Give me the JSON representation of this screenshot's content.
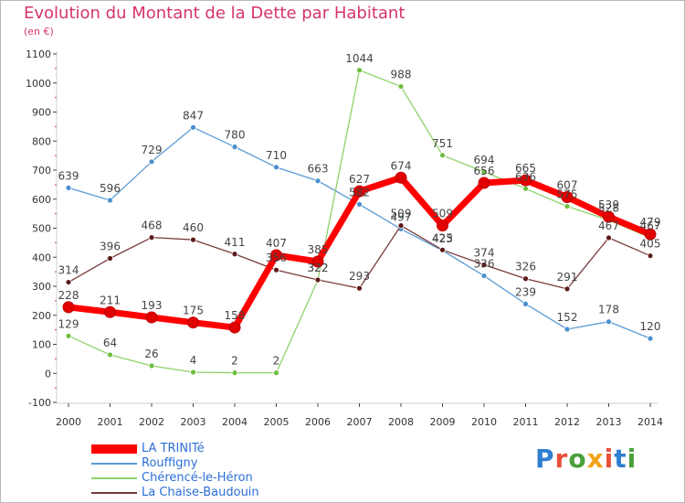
{
  "header": {
    "title": "Evolution du Montant de la Dette par Habitant",
    "unit": "(en €)"
  },
  "brand": {
    "text": "Proxiti",
    "colors": [
      "#2f7fd0",
      "#e8503a",
      "#4aa03a",
      "#f2a318",
      "#e8503a",
      "#2f7fd0",
      "#4aa03a"
    ]
  },
  "chart_data": {
    "type": "line",
    "x": [
      "2000",
      "2001",
      "2002",
      "2003",
      "2004",
      "2005",
      "2006",
      "2007",
      "2008",
      "2009",
      "2010",
      "2011",
      "2012",
      "2013",
      "2014"
    ],
    "ylim": [
      -100,
      1100
    ],
    "yticks": [
      "-100",
      "0",
      "100",
      "200",
      "300",
      "400",
      "500",
      "600",
      "700",
      "800",
      "900",
      "1000",
      "1100"
    ],
    "grid": false,
    "legend_position": "bottom-left",
    "series": [
      {
        "name": "Rouffigny",
        "color": "#5b9bd5",
        "marker": "#4a8fcf",
        "values": [
          639,
          596,
          729,
          847,
          780,
          710,
          663,
          582,
          497,
          423,
          336,
          239,
          152,
          178,
          120
        ],
        "labels": [
          "639",
          "596",
          "729",
          "847",
          "780",
          "710",
          "663",
          "582",
          "497",
          "423",
          "336",
          "239",
          "152",
          "178",
          "120"
        ]
      },
      {
        "name": "Chérencé-le-Héron",
        "color": "#8fd16a",
        "marker": "#6dbe3f",
        "values": [
          129,
          64,
          26,
          4,
          2,
          2,
          322,
          1044,
          988,
          751,
          694,
          636,
          575,
          528,
          467
        ],
        "labels": [
          "129",
          "64",
          "26",
          "4",
          "2",
          "2",
          "322",
          "1044",
          "988",
          "751",
          "694",
          "636",
          "575",
          "528",
          "467"
        ]
      },
      {
        "name": "La Chaise-Baudouin",
        "color": "#7a3b3b",
        "marker": "#5c1b1b",
        "values": [
          314,
          396,
          468,
          460,
          411,
          356,
          322,
          293,
          509,
          425,
          374,
          326,
          291,
          467,
          405
        ],
        "labels": [
          "314",
          "396",
          "468",
          "460",
          "411",
          "356",
          "322",
          "293",
          "509",
          "425",
          "374",
          "326",
          "291",
          "467",
          "405"
        ]
      },
      {
        "name": "LA TRINITé",
        "color": "#ff0000",
        "marker": "#e00000",
        "values": [
          228,
          211,
          193,
          175,
          158,
          407,
          385,
          627,
          674,
          509,
          656,
          665,
          607,
          539,
          479
        ],
        "labels": [
          "228",
          "211",
          "193",
          "175",
          "158",
          "407",
          "385",
          "627",
          "674",
          "509",
          "656",
          "665",
          "607",
          "539",
          "479"
        ]
      }
    ]
  }
}
